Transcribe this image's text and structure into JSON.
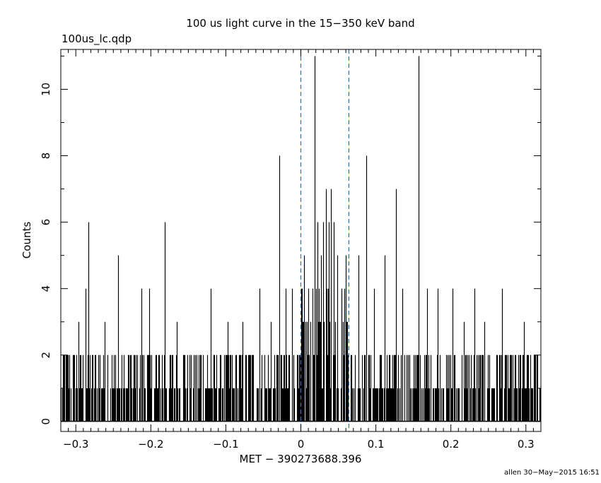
{
  "header": {
    "title": "100 us light curve in the 15−350 keV band",
    "file_label": "100us_lc.qdp"
  },
  "footer": {
    "stamp": "allen 30−May−2015 16:51"
  },
  "colors": {
    "data": "#000000",
    "marker": "#1f77d4",
    "frame": "#000000",
    "background": "#ffffff"
  },
  "chart_data": {
    "type": "bar",
    "title": "100 us light curve in the 15−350 keV band",
    "xlabel": "MET − 390273688.396",
    "ylabel": "Counts",
    "xlim": [
      -0.32,
      0.32
    ],
    "ylim": [
      -0.3,
      11.2
    ],
    "bin_width": 0.0001,
    "grid": false,
    "x_ticks": [
      -0.3,
      -0.2,
      -0.1,
      0,
      0.1,
      0.2,
      0.3
    ],
    "x_tick_labels": [
      "−0.3",
      "−0.2",
      "−0.1",
      "0",
      "0.1",
      "0.2",
      "0.3"
    ],
    "y_ticks": [
      0,
      2,
      4,
      6,
      8,
      10
    ],
    "y_tick_labels": [
      "0",
      "2",
      "4",
      "6",
      "8",
      "10"
    ],
    "marker_lines": [
      0.0,
      0.064
    ],
    "baseline_counts": {
      "before_burst": [
        0,
        1,
        2
      ],
      "burst": [
        0,
        1,
        2,
        3,
        4
      ],
      "after_burst": [
        0,
        1,
        2
      ]
    },
    "peaks": [
      {
        "x": -0.296,
        "y": 3
      },
      {
        "x": -0.283,
        "y": 6
      },
      {
        "x": -0.287,
        "y": 4
      },
      {
        "x": -0.262,
        "y": 3
      },
      {
        "x": -0.244,
        "y": 5
      },
      {
        "x": -0.213,
        "y": 4
      },
      {
        "x": -0.202,
        "y": 4
      },
      {
        "x": -0.181,
        "y": 6
      },
      {
        "x": -0.165,
        "y": 3
      },
      {
        "x": -0.12,
        "y": 4
      },
      {
        "x": -0.098,
        "y": 3
      },
      {
        "x": -0.078,
        "y": 3
      },
      {
        "x": -0.055,
        "y": 4
      },
      {
        "x": -0.04,
        "y": 3
      },
      {
        "x": -0.029,
        "y": 8
      },
      {
        "x": -0.02,
        "y": 4
      },
      {
        "x": -0.012,
        "y": 4
      },
      {
        "x": 0.004,
        "y": 5
      },
      {
        "x": 0.018,
        "y": 11
      },
      {
        "x": 0.022,
        "y": 6
      },
      {
        "x": 0.027,
        "y": 5
      },
      {
        "x": 0.03,
        "y": 6
      },
      {
        "x": 0.033,
        "y": 7
      },
      {
        "x": 0.037,
        "y": 6
      },
      {
        "x": 0.04,
        "y": 7
      },
      {
        "x": 0.044,
        "y": 6
      },
      {
        "x": 0.049,
        "y": 5
      },
      {
        "x": 0.056,
        "y": 3
      },
      {
        "x": 0.06,
        "y": 5
      },
      {
        "x": 0.077,
        "y": 5
      },
      {
        "x": 0.087,
        "y": 8
      },
      {
        "x": 0.098,
        "y": 4
      },
      {
        "x": 0.112,
        "y": 5
      },
      {
        "x": 0.127,
        "y": 7
      },
      {
        "x": 0.135,
        "y": 4
      },
      {
        "x": 0.157,
        "y": 11
      },
      {
        "x": 0.168,
        "y": 4
      },
      {
        "x": 0.182,
        "y": 4
      },
      {
        "x": 0.202,
        "y": 4
      },
      {
        "x": 0.217,
        "y": 3
      },
      {
        "x": 0.231,
        "y": 4
      },
      {
        "x": 0.245,
        "y": 3
      },
      {
        "x": 0.268,
        "y": 4
      },
      {
        "x": 0.297,
        "y": 3
      }
    ]
  }
}
